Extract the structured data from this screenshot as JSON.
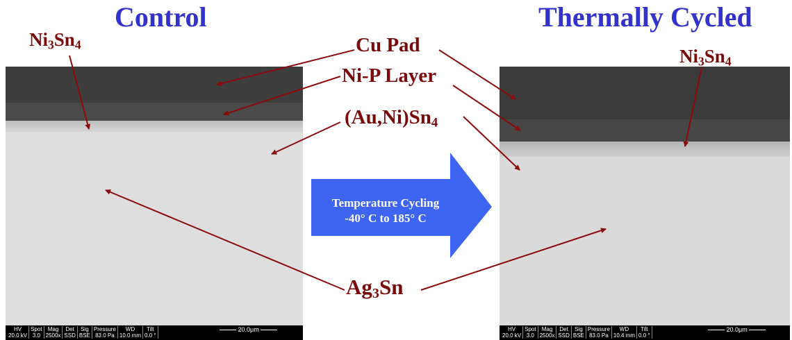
{
  "titles": {
    "left": "Control",
    "right": "Thermally Cycled"
  },
  "labels": {
    "ni3sn4_left": {
      "main": "Ni",
      "s1": "3",
      "mid": "Sn",
      "s2": "4"
    },
    "ni3sn4_right": {
      "main": "Ni",
      "s1": "3",
      "mid": "Sn",
      "s2": "4"
    },
    "cu_pad": "Cu Pad",
    "nip_layer": "Ni-P Layer",
    "auni": {
      "main": "(Au,Ni)Sn",
      "s": "4"
    },
    "ag3sn": {
      "main": "Ag",
      "s": "3",
      "end": "Sn"
    }
  },
  "arrow": {
    "line1": "Temperature Cycling",
    "line2": "-40° C to 185° C",
    "color": "#3e64f2"
  },
  "colors": {
    "title": "#3333cc",
    "label": "#7a0a0a",
    "leader": "#8b0a0a"
  },
  "micrographs": {
    "left": {
      "headers": [
        "HV",
        "Spot",
        "Mag",
        "Det",
        "Sig",
        "Pressure",
        "WD",
        "Tilt"
      ],
      "values": [
        "20.0 kV",
        "3.0",
        "2500x",
        "SSD",
        "BSE",
        "83.0 Pa",
        "10.0 mm",
        "0.0 °"
      ],
      "scale": "20.0μm"
    },
    "right": {
      "headers": [
        "HV",
        "Spot",
        "Mag",
        "Det",
        "Sig",
        "Pressure",
        "WD",
        "Tilt"
      ],
      "values": [
        "20.0 kV",
        "3.0",
        "2500x",
        "SSD",
        "BSE",
        "83.0 Pa",
        "10.4 mm",
        "0.0 °"
      ],
      "scale": "20.0μm"
    }
  }
}
